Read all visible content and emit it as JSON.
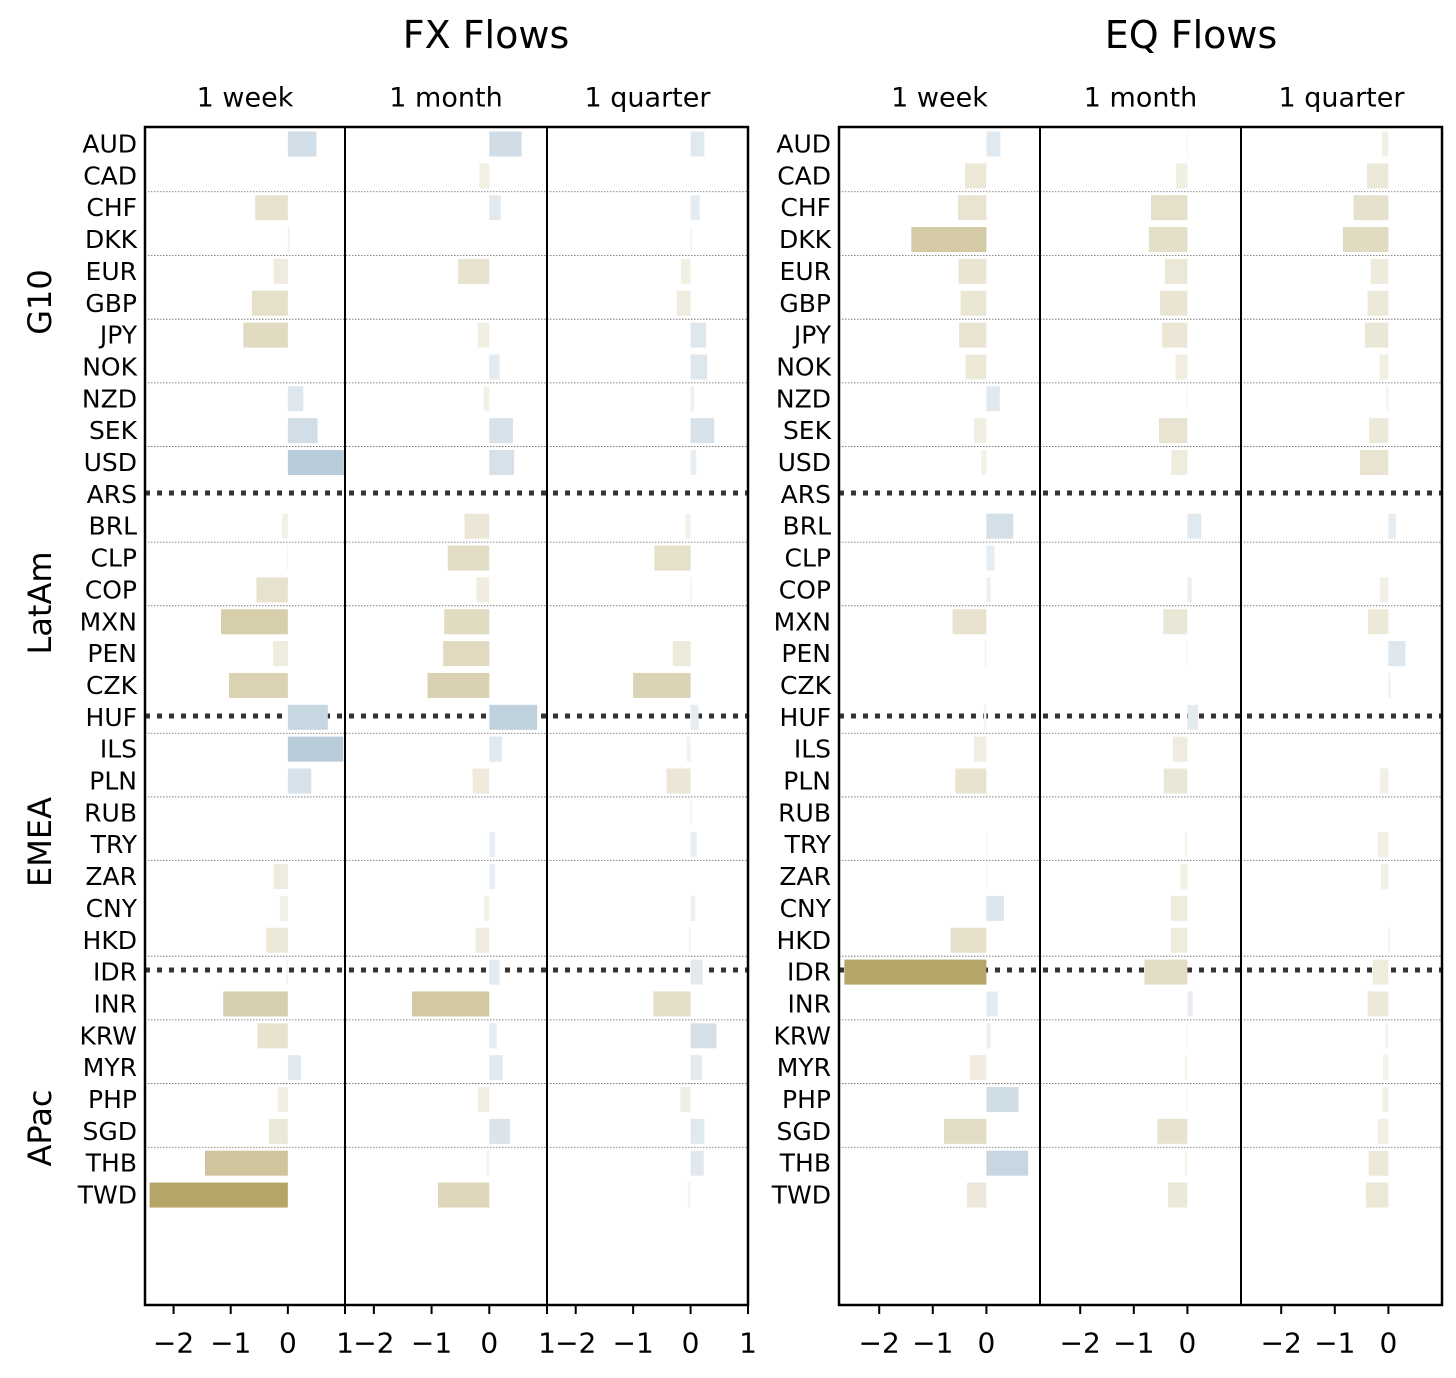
{
  "chart_data": {
    "type": "bar",
    "orientation": "horizontal",
    "panels": [
      {
        "title": "FX Flows",
        "periods": [
          "1 week",
          "1 month",
          "1 quarter"
        ],
        "x_ticks": [
          "-2",
          "-1",
          "0",
          "1"
        ],
        "xlim": [
          -2.5,
          1.0
        ],
        "series": {
          "1 week": [
            0.5,
            0.0,
            -0.57,
            0.03,
            -0.25,
            -0.63,
            -0.78,
            0.0,
            0.27,
            0.52,
            0.98,
            0.0,
            -0.1,
            -0.02,
            -0.55,
            -1.17,
            -0.26,
            -1.03,
            0.7,
            0.97,
            0.41,
            0.0,
            0.0,
            -0.25,
            -0.14,
            -0.38,
            -0.03,
            -1.13,
            -0.53,
            0.23,
            -0.18,
            -0.33,
            -1.45,
            -2.42
          ],
          "1 month": [
            0.56,
            -0.17,
            0.2,
            0.0,
            -0.54,
            0.0,
            -0.2,
            0.18,
            -0.1,
            0.41,
            0.43,
            0.0,
            -0.43,
            -0.72,
            -0.22,
            -0.78,
            -0.8,
            -1.07,
            0.83,
            0.22,
            -0.29,
            0.0,
            0.1,
            0.1,
            -0.09,
            -0.24,
            0.18,
            -1.34,
            0.13,
            0.23,
            -0.2,
            0.36,
            -0.05,
            -0.89
          ],
          "1 quarter": [
            0.24,
            0.0,
            0.16,
            0.02,
            -0.17,
            -0.24,
            0.27,
            0.29,
            0.06,
            0.41,
            0.1,
            0.0,
            -0.09,
            -0.63,
            0.02,
            0.0,
            -0.31,
            -1.0,
            0.14,
            -0.07,
            -0.42,
            0.02,
            0.11,
            0.0,
            0.08,
            -0.03,
            0.21,
            -0.65,
            0.45,
            0.2,
            -0.18,
            0.24,
            0.23,
            -0.05
          ]
        }
      },
      {
        "title": "EQ Flows",
        "periods": [
          "1 week",
          "1 month",
          "1 quarter"
        ],
        "x_ticks": [
          "-2",
          "-1",
          "0"
        ],
        "xlim": [
          -2.75,
          1.0
        ],
        "series": {
          "1 week": [
            0.26,
            -0.4,
            -0.53,
            -1.4,
            -0.52,
            -0.48,
            -0.51,
            -0.39,
            0.25,
            -0.23,
            -0.1,
            0.0,
            0.5,
            0.15,
            0.08,
            -0.63,
            -0.03,
            0.0,
            -0.05,
            -0.23,
            -0.58,
            0.0,
            0.02,
            0.02,
            0.33,
            -0.67,
            -2.65,
            0.21,
            0.08,
            -0.31,
            0.6,
            -0.79,
            0.78,
            -0.36
          ],
          "1 month": [
            -0.02,
            -0.21,
            -0.68,
            -0.72,
            -0.42,
            -0.51,
            -0.47,
            -0.22,
            -0.02,
            -0.53,
            -0.3,
            0.0,
            0.26,
            0.0,
            0.08,
            -0.45,
            -0.02,
            0.0,
            0.2,
            -0.27,
            -0.44,
            0.0,
            -0.05,
            -0.13,
            -0.31,
            -0.31,
            -0.8,
            0.1,
            -0.02,
            -0.05,
            -0.02,
            -0.56,
            -0.05,
            -0.36
          ],
          "1 quarter": [
            -0.12,
            -0.4,
            -0.65,
            -0.85,
            -0.33,
            -0.39,
            -0.44,
            -0.17,
            -0.04,
            -0.36,
            -0.53,
            0.0,
            0.14,
            0.0,
            -0.16,
            -0.38,
            0.32,
            0.04,
            0.0,
            0.0,
            -0.16,
            0.0,
            -0.2,
            -0.14,
            0.0,
            0.03,
            -0.29,
            -0.39,
            -0.06,
            -0.1,
            -0.11,
            -0.2,
            -0.37,
            -0.42
          ]
        }
      }
    ],
    "groups": [
      {
        "name": "G10",
        "start": 0,
        "count": 11
      },
      {
        "name": "LatAm",
        "start": 11,
        "count": 6
      },
      {
        "name": "EMEA",
        "start": 17,
        "count": 7
      },
      {
        "name": "APac",
        "start": 24,
        "count": 10
      }
    ],
    "categories": [
      "AUD",
      "CAD",
      "CHF",
      "DKK",
      "EUR",
      "GBP",
      "JPY",
      "NOK",
      "NZD",
      "SEK",
      "USD",
      "ARS",
      "BRL",
      "CLP",
      "COP",
      "MXN",
      "PEN",
      "CZK",
      "HUF",
      "ILS",
      "PLN",
      "RUB",
      "TRY",
      "ZAR",
      "CNY",
      "HKD",
      "IDR",
      "INR",
      "KRW",
      "MYR",
      "PHP",
      "SGD",
      "THB",
      "TWD"
    ],
    "colors": {
      "positive": "#6a93b0",
      "negative": "#b5a566"
    },
    "grid": true
  }
}
